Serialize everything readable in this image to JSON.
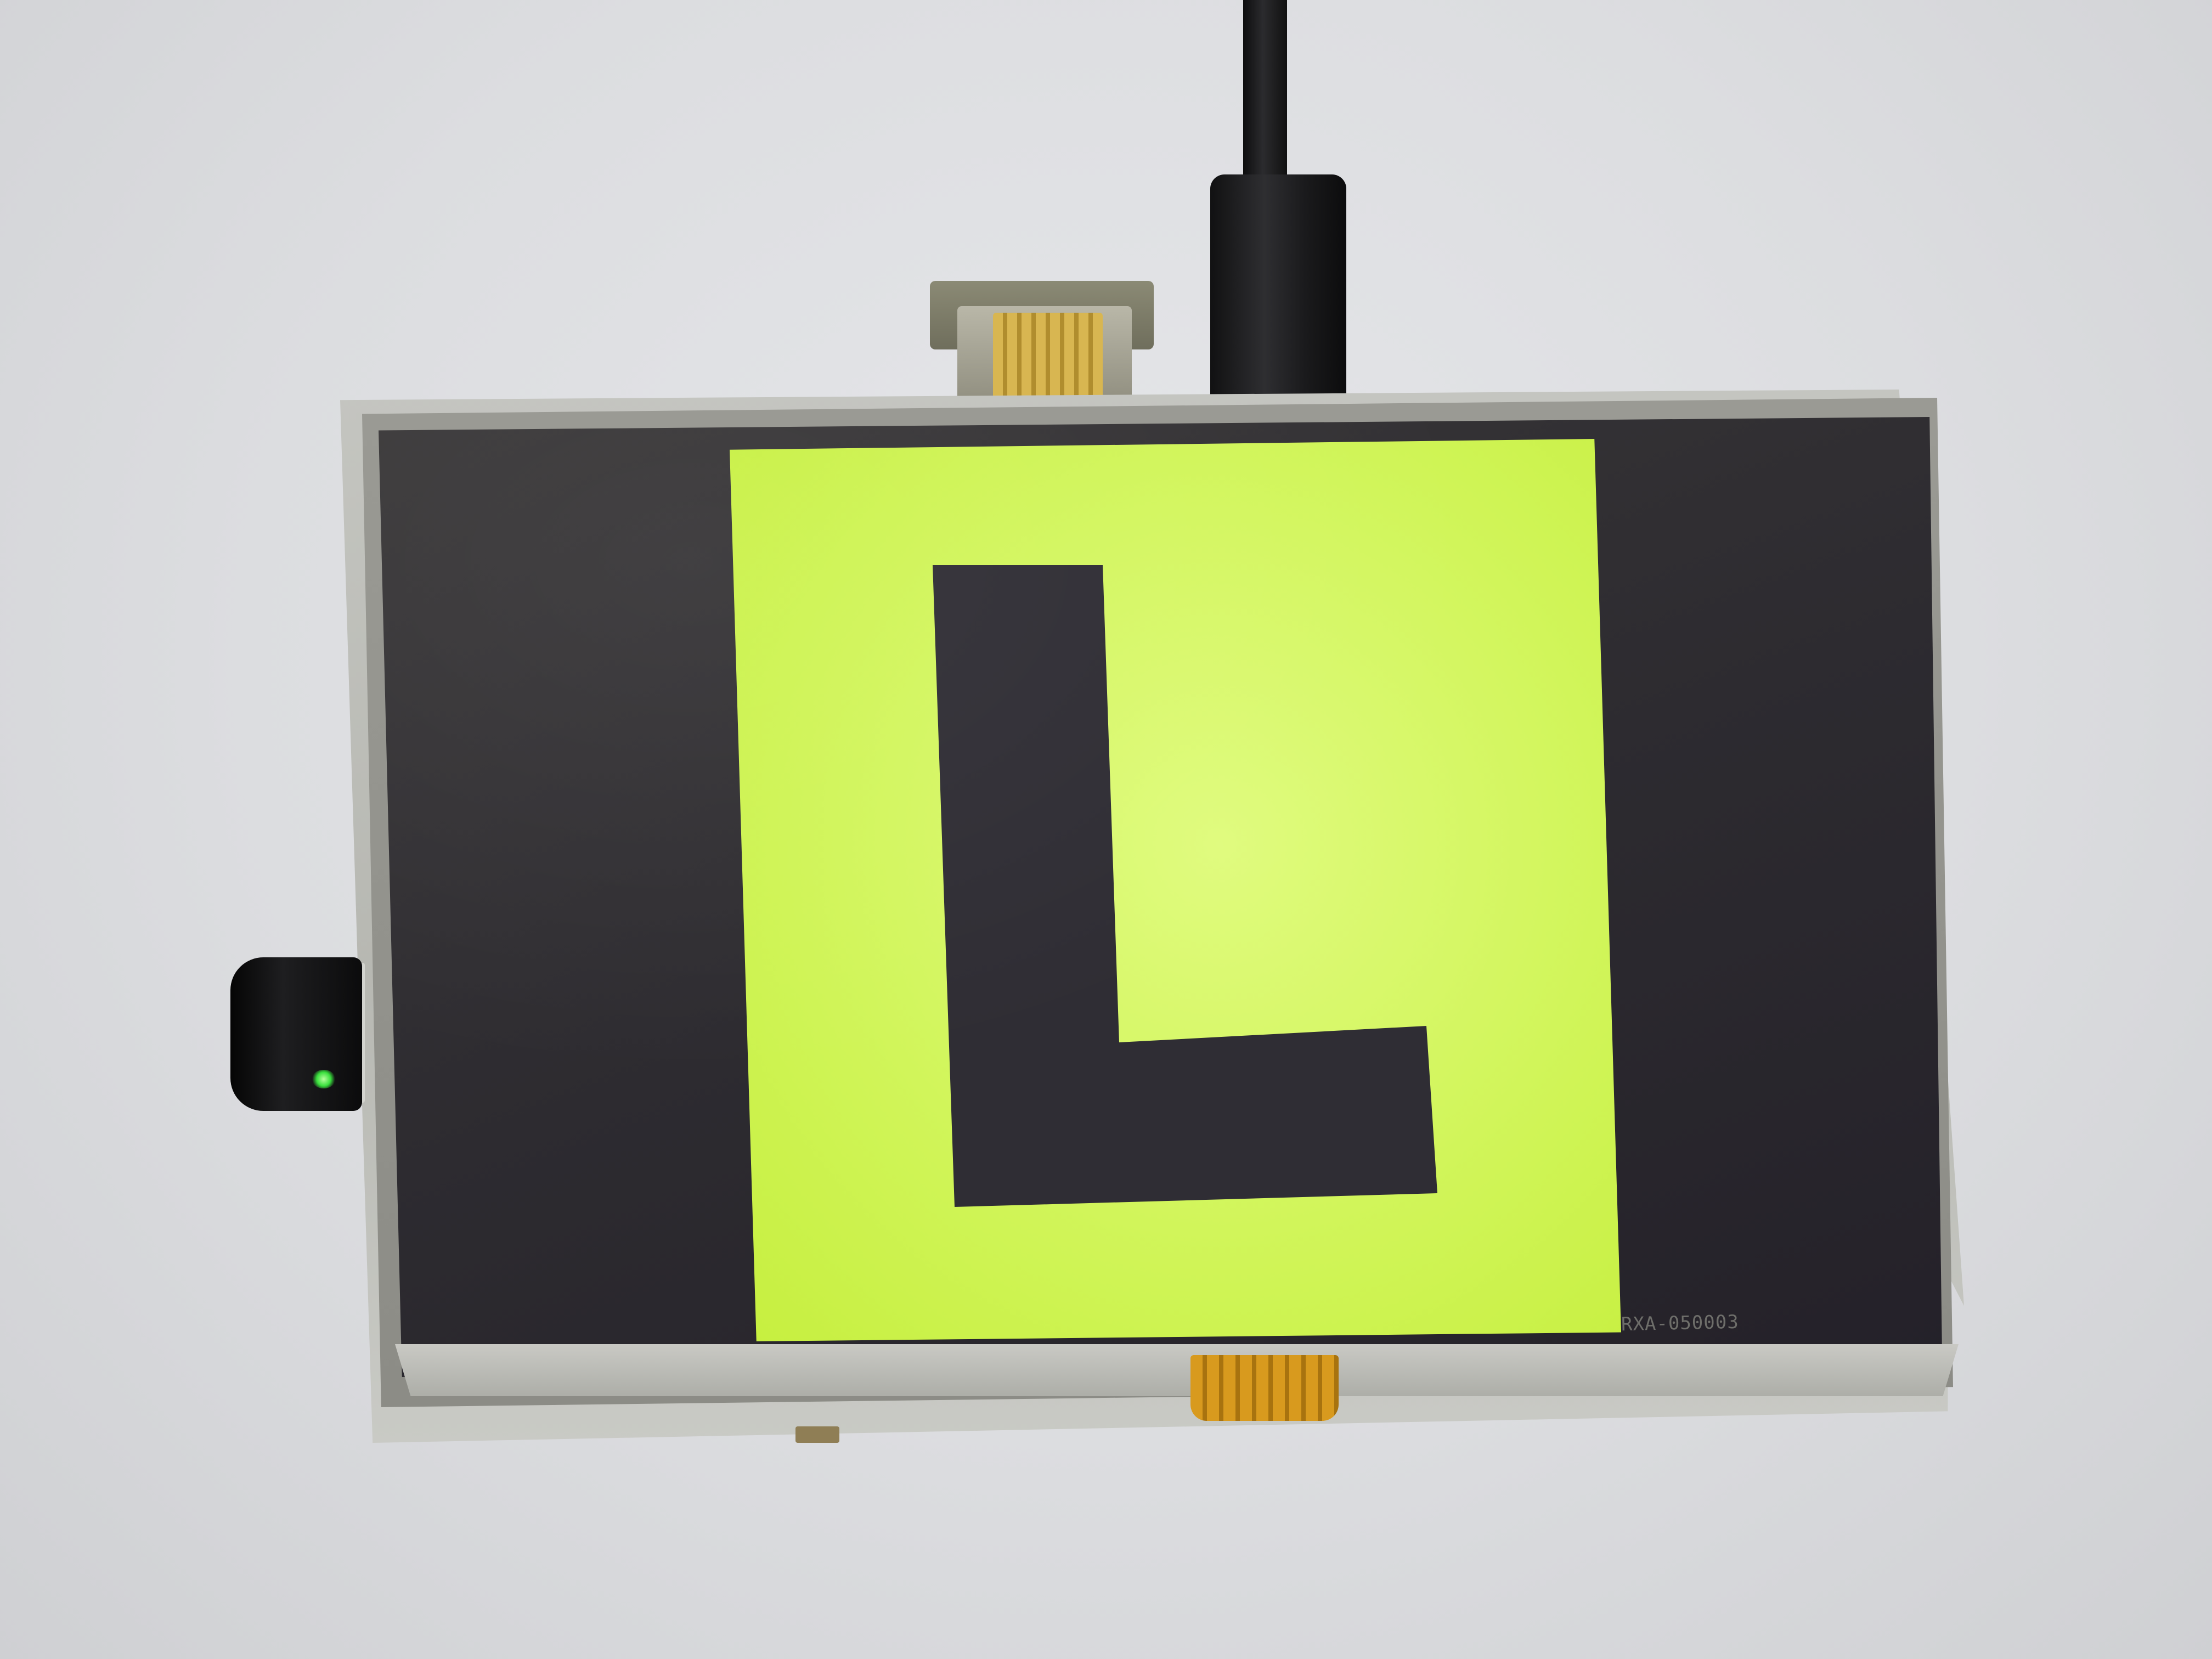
{
  "scene": {
    "description_items": [
      "power-cable",
      "hdmi-connector",
      "usb-wifi-dongle",
      "lcd-display"
    ]
  },
  "display": {
    "model_label": "RXA-050003",
    "content_letter": "L",
    "colors": {
      "screen_background": "#2e2c31",
      "letter_box": "#d4f65f",
      "letter": "#2f2d34",
      "led": "#39e03d"
    }
  },
  "icons": {
    "power": "power-cable-icon",
    "hdmi": "hdmi-connector-icon",
    "wifi": "wifi-dongle-icon"
  }
}
